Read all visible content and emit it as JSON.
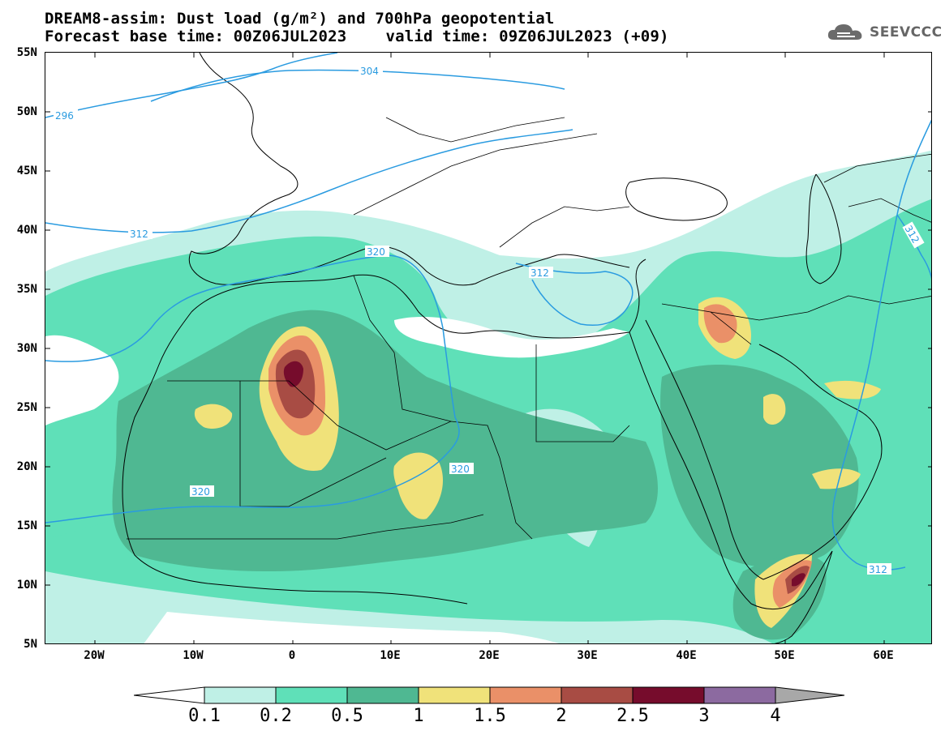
{
  "title": {
    "line1": "DREAM8-assim: Dust load (g/m²) and 700hPa geopotential",
    "line2_base": "Forecast base time: 00Z06JUL2023",
    "line2_valid": "valid time: 09Z06JUL2023 (+09)"
  },
  "logo": {
    "text": "SEEVCCC",
    "icon": "cloud-icon"
  },
  "map": {
    "lat_labels": [
      "55N",
      "50N",
      "45N",
      "40N",
      "35N",
      "30N",
      "25N",
      "20N",
      "15N",
      "10N",
      "5N"
    ],
    "lon_labels": [
      "20W",
      "10W",
      "0",
      "10E",
      "20E",
      "30E",
      "40E",
      "50E",
      "60E"
    ],
    "lat_range": [
      5,
      55
    ],
    "lon_range": [
      -25,
      65
    ],
    "contour_labels": [
      "304",
      "296",
      "312",
      "320",
      "312",
      "320",
      "320",
      "312",
      "312"
    ]
  },
  "colorbar": {
    "labels": [
      "0.1",
      "0.2",
      "0.5",
      "1",
      "1.5",
      "2",
      "2.5",
      "3",
      "4"
    ],
    "colors": [
      "#ffffff",
      "#bff0e6",
      "#5fe0b8",
      "#4fb892",
      "#f0e27a",
      "#ea9068",
      "#a84c44",
      "#760c2c",
      "#8c6aa0",
      "#a8a8a8"
    ]
  },
  "palette": {
    "very_low": "#bff0e6",
    "low": "#5fe0b8",
    "medium": "#4fb892",
    "elevated": "#f0e27a",
    "high": "#ea9068",
    "very_high": "#a84c44",
    "extreme": "#760c2c",
    "geopotential_line": "#2a9be0"
  }
}
